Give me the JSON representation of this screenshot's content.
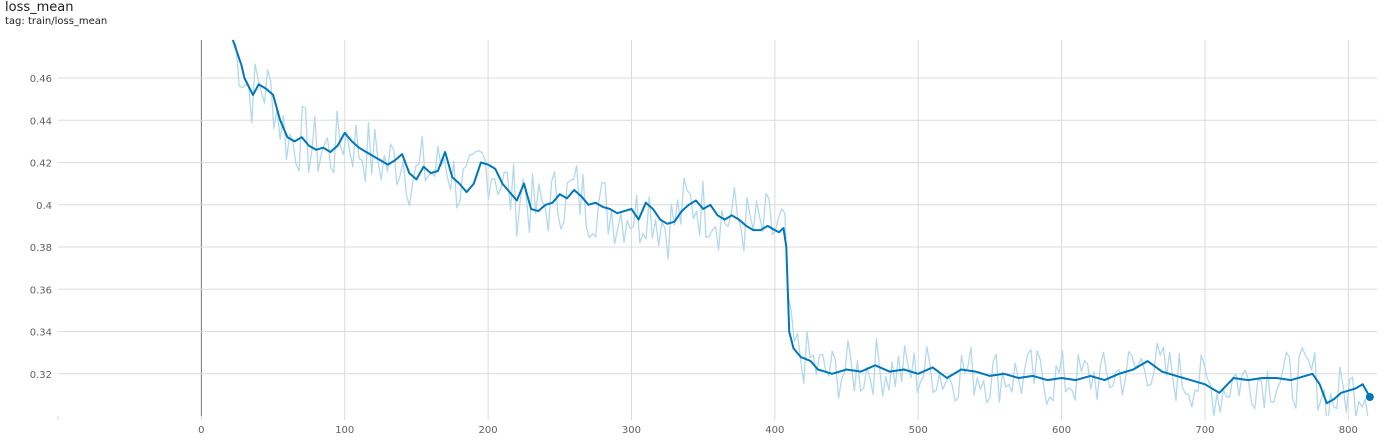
{
  "card": {
    "title": "loss_mean",
    "tag": "tag: train/loss_mean"
  },
  "colors": {
    "smoothed": "#0077bb",
    "raw": "#b3d9ec",
    "grid": "#dcdcdc",
    "zero_axis": "#757575"
  },
  "chart_data": {
    "type": "line",
    "title": "loss_mean",
    "xlabel": "",
    "ylabel": "",
    "grid": true,
    "xlim": [
      -100,
      820
    ],
    "ylim": [
      0.3,
      0.478
    ],
    "x_ticks": [
      0,
      100,
      200,
      300,
      400,
      500,
      600,
      700,
      800
    ],
    "y_ticks": [
      0.32,
      0.34,
      0.36,
      0.38,
      0.4,
      0.42,
      0.44,
      0.46
    ],
    "y_tick_labels": [
      "0.32",
      "0.34",
      "0.36",
      "0.38",
      "0.4",
      "0.42",
      "0.44",
      "0.46"
    ],
    "series": [
      {
        "role": "smoothed",
        "x": [
          22,
          25,
          28,
          30,
          33,
          36,
          40,
          45,
          50,
          55,
          60,
          65,
          70,
          75,
          80,
          85,
          90,
          95,
          100,
          105,
          110,
          115,
          120,
          125,
          130,
          135,
          140,
          145,
          150,
          155,
          160,
          165,
          170,
          175,
          180,
          185,
          190,
          195,
          200,
          205,
          210,
          215,
          220,
          225,
          230,
          235,
          240,
          245,
          250,
          255,
          260,
          265,
          270,
          275,
          280,
          285,
          290,
          295,
          300,
          305,
          310,
          315,
          320,
          325,
          330,
          335,
          340,
          345,
          350,
          355,
          360,
          365,
          370,
          375,
          380,
          385,
          390,
          395,
          400,
          403,
          406,
          408,
          410,
          413,
          418,
          425,
          430,
          440,
          450,
          460,
          470,
          480,
          490,
          500,
          510,
          520,
          530,
          540,
          550,
          560,
          570,
          580,
          590,
          600,
          610,
          620,
          630,
          640,
          650,
          660,
          670,
          680,
          690,
          700,
          710,
          720,
          730,
          740,
          750,
          760,
          770,
          775,
          780,
          785,
          790,
          795,
          800,
          805,
          810,
          815
        ],
        "y": [
          0.478,
          0.472,
          0.466,
          0.46,
          0.456,
          0.452,
          0.457,
          0.455,
          0.452,
          0.44,
          0.432,
          0.43,
          0.432,
          0.428,
          0.426,
          0.427,
          0.425,
          0.428,
          0.434,
          0.43,
          0.427,
          0.425,
          0.423,
          0.421,
          0.419,
          0.421,
          0.424,
          0.415,
          0.412,
          0.418,
          0.415,
          0.416,
          0.425,
          0.413,
          0.41,
          0.406,
          0.41,
          0.42,
          0.419,
          0.417,
          0.41,
          0.406,
          0.402,
          0.41,
          0.398,
          0.397,
          0.4,
          0.401,
          0.405,
          0.403,
          0.407,
          0.404,
          0.4,
          0.401,
          0.399,
          0.398,
          0.396,
          0.397,
          0.398,
          0.393,
          0.401,
          0.398,
          0.393,
          0.391,
          0.392,
          0.397,
          0.4,
          0.402,
          0.398,
          0.4,
          0.395,
          0.393,
          0.395,
          0.393,
          0.39,
          0.388,
          0.388,
          0.39,
          0.388,
          0.387,
          0.389,
          0.38,
          0.34,
          0.332,
          0.328,
          0.326,
          0.322,
          0.32,
          0.322,
          0.321,
          0.324,
          0.321,
          0.322,
          0.32,
          0.323,
          0.318,
          0.322,
          0.321,
          0.319,
          0.32,
          0.318,
          0.319,
          0.317,
          0.318,
          0.317,
          0.319,
          0.317,
          0.32,
          0.322,
          0.326,
          0.321,
          0.319,
          0.317,
          0.315,
          0.311,
          0.318,
          0.317,
          0.318,
          0.318,
          0.317,
          0.319,
          0.32,
          0.315,
          0.306,
          0.308,
          0.311,
          0.312,
          0.313,
          0.315,
          0.309
        ]
      }
    ]
  }
}
